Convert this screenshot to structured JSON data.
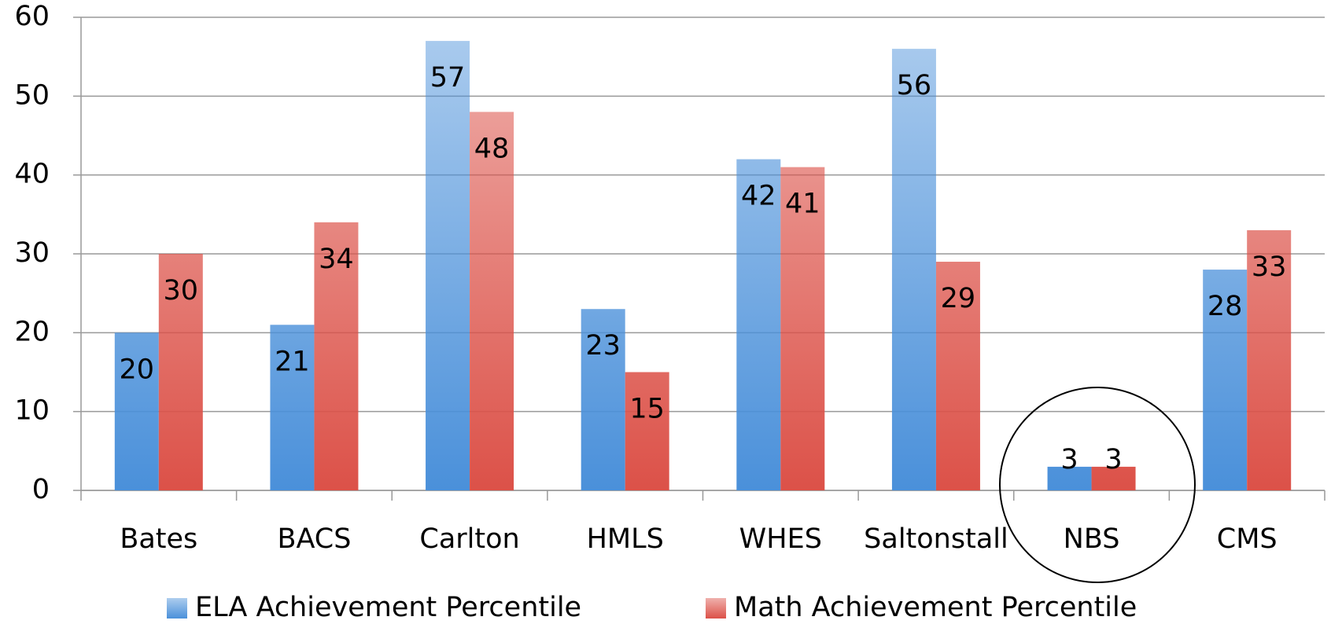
{
  "chart_data": {
    "type": "bar",
    "categories": [
      "Bates",
      "BACS",
      "Carlton",
      "HMLS",
      "WHES",
      "Saltonstall",
      "NBS",
      "CMS"
    ],
    "series": [
      {
        "name": "ELA Achievement Percentile",
        "color": "#4a90da",
        "values": [
          20,
          21,
          57,
          23,
          42,
          56,
          3,
          28
        ]
      },
      {
        "name": "Math Achievement Percentile",
        "color": "#dc5148",
        "values": [
          30,
          34,
          48,
          15,
          41,
          29,
          3,
          33
        ]
      }
    ],
    "ylim": [
      0,
      60
    ],
    "yticks": [
      0,
      10,
      20,
      30,
      40,
      50,
      60
    ],
    "grid": true,
    "legend": "bottom"
  }
}
